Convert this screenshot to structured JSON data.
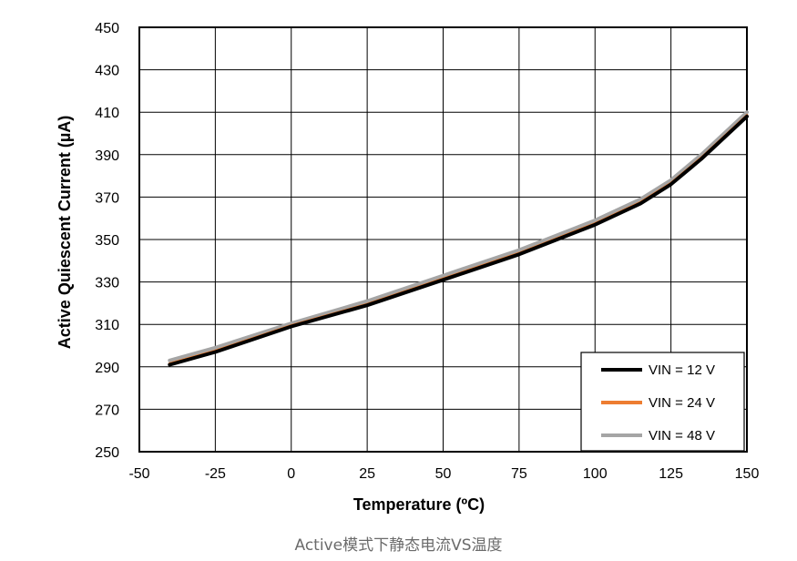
{
  "caption": "Active模式下静态电流VS温度",
  "chart_data": {
    "type": "line",
    "xlabel": "Temperature (ºC)",
    "ylabel": "Active Quiescent Current (µA)",
    "xlim": [
      -50,
      150
    ],
    "ylim": [
      250,
      450
    ],
    "xticks": [
      -50,
      -25,
      0,
      25,
      50,
      75,
      100,
      125,
      150
    ],
    "yticks": [
      250,
      270,
      290,
      310,
      330,
      350,
      370,
      390,
      410,
      430,
      450
    ],
    "grid": true,
    "legend_position": "bottom-right",
    "x": [
      -40,
      -25,
      0,
      25,
      50,
      75,
      100,
      115,
      125,
      135,
      150
    ],
    "series": [
      {
        "name": "VIN = 12 V",
        "color": "#000000",
        "values": [
          291,
          297,
          309,
          319,
          331,
          343,
          357,
          367,
          376,
          388,
          408
        ]
      },
      {
        "name": "VIN = 24 V",
        "color": "#ed7d31",
        "values": [
          291.5,
          297.5,
          309.5,
          319.5,
          331.5,
          343.5,
          357.5,
          367.5,
          376.5,
          388.5,
          408.5
        ]
      },
      {
        "name": "VIN = 48 V",
        "color": "#a5a5a5",
        "values": [
          293,
          299,
          310.5,
          321,
          333,
          345,
          359,
          369,
          378,
          390,
          410
        ]
      }
    ]
  }
}
